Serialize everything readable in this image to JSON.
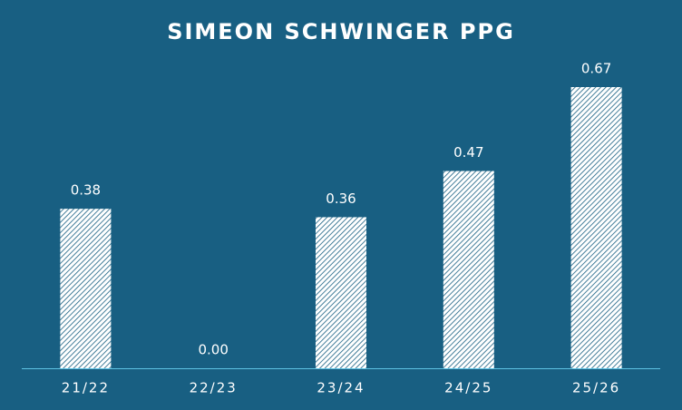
{
  "chart_data": {
    "type": "bar",
    "title": "SIMEON SCHWINGER PPG",
    "categories": [
      "21/22",
      "22/23",
      "23/24",
      "24/25",
      "25/26"
    ],
    "values": [
      0.38,
      0,
      0.36,
      0.47,
      0.67
    ],
    "value_labels": [
      "0.38",
      "0.00",
      "0.36",
      "0.47",
      "0.67"
    ],
    "color": "#ffffff"
  }
}
